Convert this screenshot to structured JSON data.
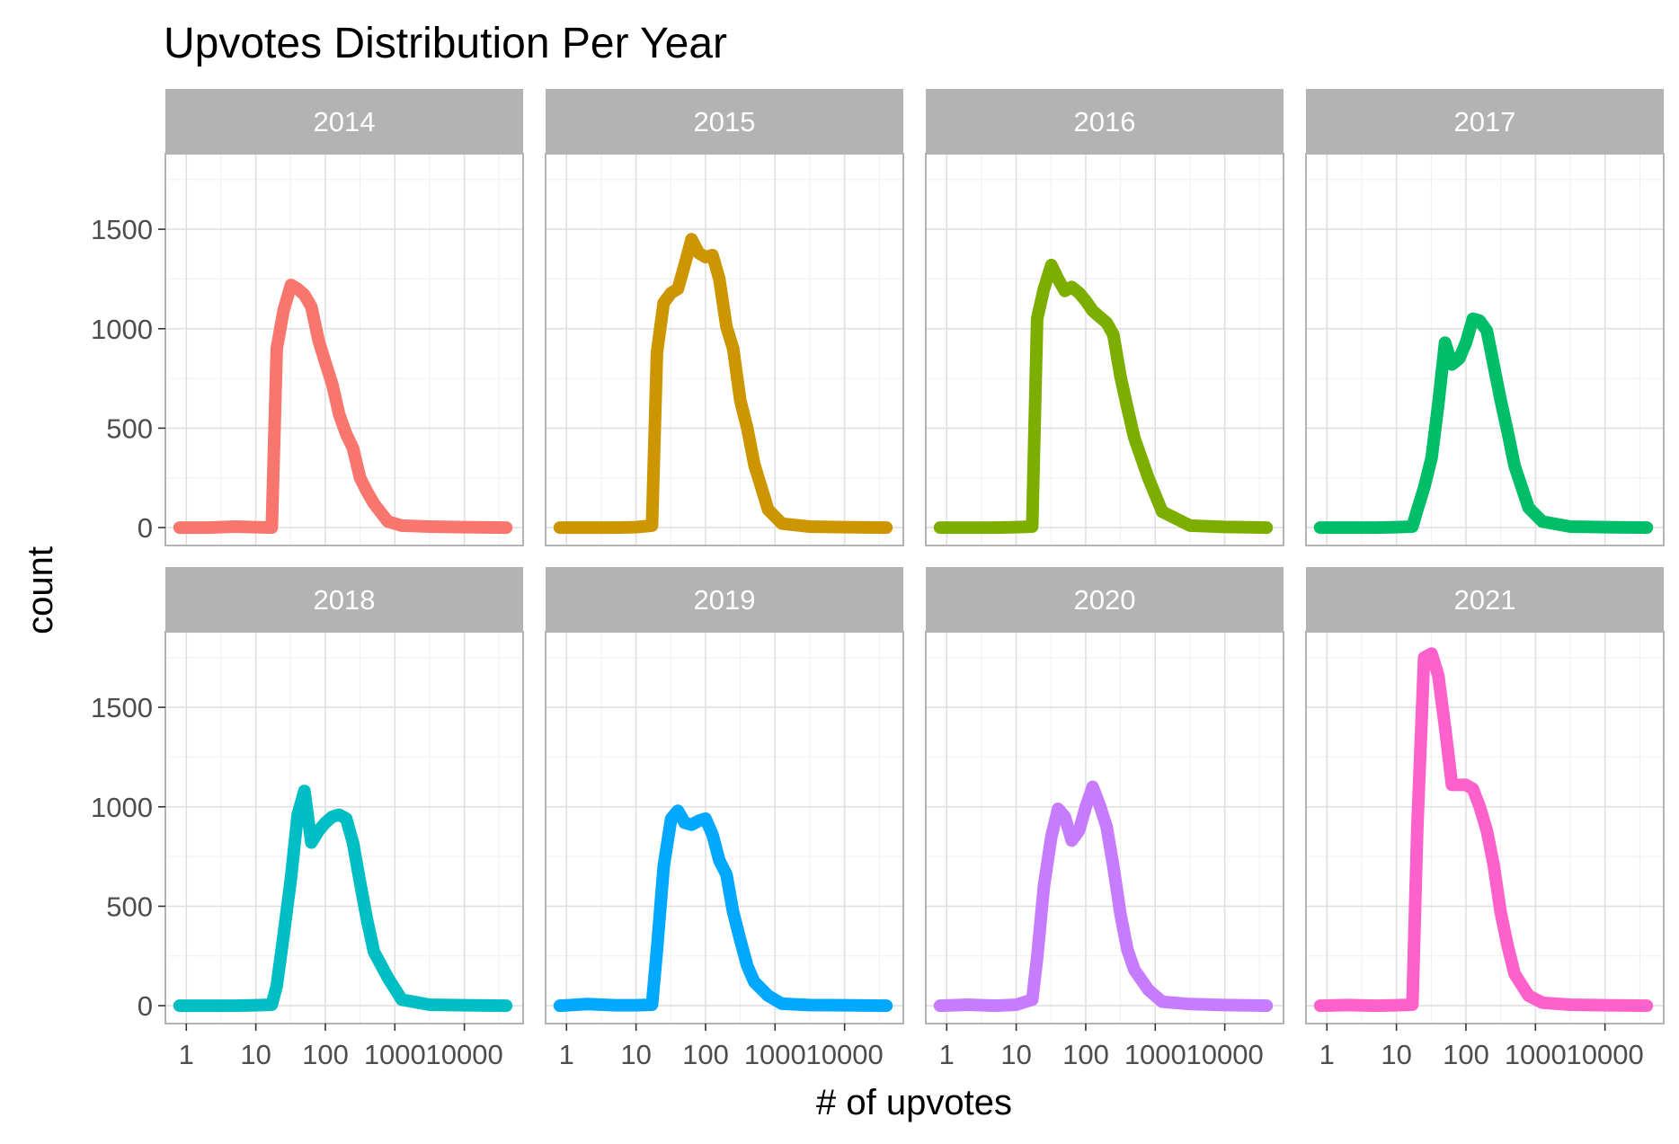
{
  "chart_data": {
    "type": "line",
    "title": "Upvotes Distribution Per Year",
    "xlabel": "# of upvotes",
    "ylabel": "count",
    "x_scale": "log10",
    "xlim": [
      0.5,
      70000
    ],
    "ylim": [
      -90,
      1880
    ],
    "x_ticks": [
      1,
      10,
      100,
      1000,
      10000
    ],
    "x_tick_labels": [
      "1",
      "10",
      "100",
      "1000",
      "10000"
    ],
    "y_ticks": [
      0,
      500,
      1000,
      1500
    ],
    "y_tick_labels": [
      "0",
      "500",
      "1000",
      "1500"
    ],
    "grid": true,
    "layout": "facet wrap, 4 columns x 2 rows",
    "panels": [
      {
        "label": "2014",
        "color": "#F8766D",
        "x": [
          0.8,
          2,
          5,
          10,
          17,
          20,
          25,
          32,
          40,
          50,
          63,
          80,
          100,
          126,
          158,
          200,
          250,
          316,
          398,
          501,
          794,
          1259,
          3162,
          10000,
          40000
        ],
        "y": [
          0,
          0,
          5,
          2,
          0,
          900,
          1090,
          1220,
          1200,
          1170,
          1110,
          940,
          830,
          720,
          570,
          470,
          400,
          250,
          180,
          120,
          30,
          10,
          5,
          2,
          0
        ]
      },
      {
        "label": "2015",
        "color": "#CD9600",
        "x": [
          0.8,
          2,
          5,
          10,
          17,
          20,
          25,
          32,
          40,
          50,
          63,
          80,
          100,
          126,
          158,
          200,
          250,
          316,
          398,
          501,
          794,
          1259,
          3162,
          10000,
          40000
        ],
        "y": [
          0,
          0,
          0,
          2,
          10,
          880,
          1130,
          1180,
          1200,
          1320,
          1450,
          1380,
          1360,
          1370,
          1250,
          1010,
          900,
          640,
          500,
          320,
          90,
          20,
          5,
          2,
          0
        ]
      },
      {
        "label": "2016",
        "color": "#7CAE00",
        "x": [
          0.8,
          2,
          5,
          10,
          17,
          20,
          25,
          32,
          40,
          50,
          63,
          80,
          100,
          126,
          158,
          200,
          250,
          316,
          398,
          501,
          794,
          1259,
          3162,
          10000,
          40000
        ],
        "y": [
          0,
          0,
          0,
          2,
          5,
          1050,
          1200,
          1320,
          1250,
          1190,
          1210,
          1180,
          1140,
          1090,
          1060,
          1030,
          970,
          760,
          600,
          450,
          250,
          80,
          10,
          3,
          0
        ]
      },
      {
        "label": "2017",
        "color": "#00BE67",
        "x": [
          0.8,
          2,
          5,
          10,
          17,
          20,
          25,
          32,
          40,
          50,
          63,
          80,
          100,
          126,
          158,
          200,
          250,
          316,
          398,
          501,
          794,
          1259,
          3162,
          10000,
          40000
        ],
        "y": [
          0,
          0,
          0,
          2,
          5,
          90,
          200,
          350,
          620,
          930,
          820,
          850,
          930,
          1050,
          1040,
          990,
          820,
          640,
          480,
          310,
          100,
          30,
          5,
          2,
          0
        ]
      },
      {
        "label": "2018",
        "color": "#00BFC4",
        "x": [
          0.8,
          2,
          5,
          10,
          17,
          20,
          25,
          32,
          40,
          50,
          63,
          80,
          100,
          126,
          158,
          200,
          250,
          316,
          398,
          501,
          794,
          1259,
          3162,
          10000,
          40000
        ],
        "y": [
          0,
          0,
          0,
          2,
          5,
          100,
          350,
          640,
          960,
          1080,
          820,
          880,
          920,
          950,
          960,
          940,
          820,
          620,
          430,
          270,
          140,
          30,
          5,
          2,
          0
        ]
      },
      {
        "label": "2019",
        "color": "#00A9FF",
        "x": [
          0.8,
          2,
          5,
          10,
          17,
          20,
          25,
          32,
          40,
          50,
          63,
          80,
          100,
          126,
          158,
          200,
          250,
          316,
          398,
          501,
          794,
          1259,
          3162,
          10000,
          40000
        ],
        "y": [
          0,
          8,
          2,
          2,
          5,
          280,
          700,
          940,
          980,
          920,
          910,
          930,
          940,
          860,
          730,
          660,
          470,
          330,
          200,
          120,
          50,
          10,
          3,
          2,
          0
        ]
      },
      {
        "label": "2020",
        "color": "#C77CFF",
        "x": [
          0.8,
          2,
          5,
          10,
          17,
          20,
          25,
          32,
          40,
          50,
          63,
          80,
          100,
          126,
          158,
          200,
          250,
          316,
          398,
          501,
          794,
          1259,
          3162,
          10000,
          40000
        ],
        "y": [
          0,
          5,
          0,
          5,
          30,
          240,
          600,
          850,
          990,
          950,
          830,
          880,
          1000,
          1100,
          1010,
          900,
          700,
          460,
          280,
          180,
          80,
          20,
          8,
          3,
          0
        ]
      },
      {
        "label": "2021",
        "color": "#FF61CC",
        "x": [
          0.8,
          2,
          5,
          10,
          17,
          20,
          25,
          32,
          40,
          50,
          63,
          80,
          100,
          126,
          158,
          200,
          250,
          316,
          398,
          501,
          794,
          1259,
          3162,
          10000,
          40000
        ],
        "y": [
          0,
          3,
          0,
          2,
          5,
          900,
          1750,
          1770,
          1660,
          1400,
          1110,
          1110,
          1110,
          1090,
          1000,
          880,
          710,
          470,
          300,
          160,
          50,
          15,
          5,
          2,
          0
        ]
      }
    ]
  }
}
